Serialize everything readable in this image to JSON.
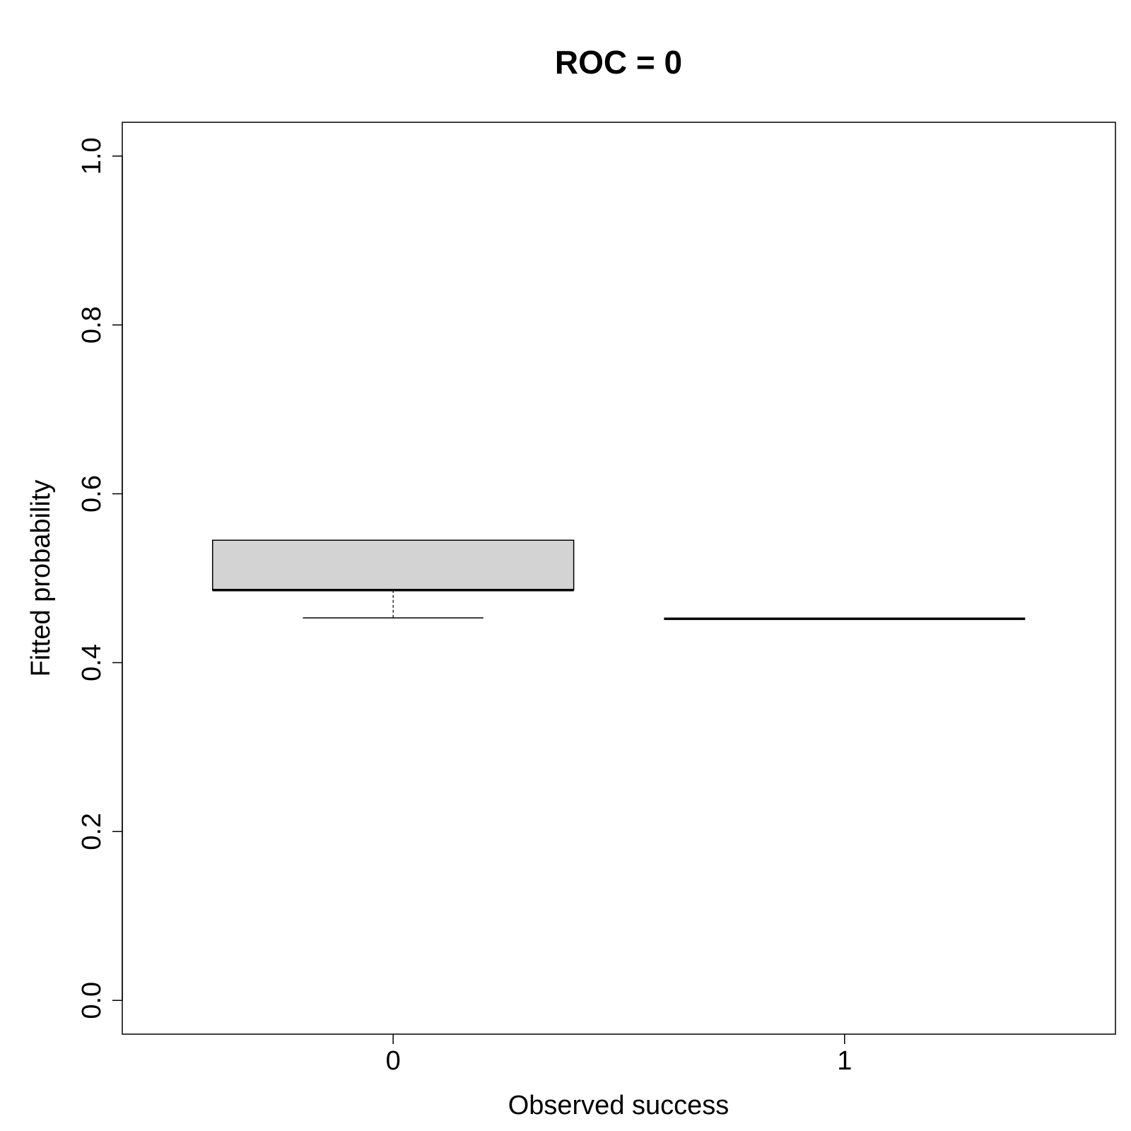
{
  "chart_data": {
    "type": "boxplot",
    "title": "ROC = 0",
    "xlabel": "Observed success",
    "ylabel": "Fitted probability",
    "categories": [
      "0",
      "1"
    ],
    "ylim": [
      -0.04,
      1.04
    ],
    "yticks": [
      0.0,
      0.2,
      0.4,
      0.6,
      0.8,
      1.0
    ],
    "ytick_labels": [
      "0.0",
      "0.2",
      "0.4",
      "0.6",
      "0.8",
      "1.0"
    ],
    "grid": false,
    "boxes": [
      {
        "category": "0",
        "min": 0.453,
        "q1": 0.486,
        "median": 0.486,
        "q3": 0.545,
        "max": 0.545
      },
      {
        "category": "1",
        "min": 0.452,
        "q1": 0.452,
        "median": 0.452,
        "q3": 0.452,
        "max": 0.452
      }
    ],
    "colors": {
      "box_fill": "#d3d3d3",
      "stroke": "#000000"
    }
  }
}
